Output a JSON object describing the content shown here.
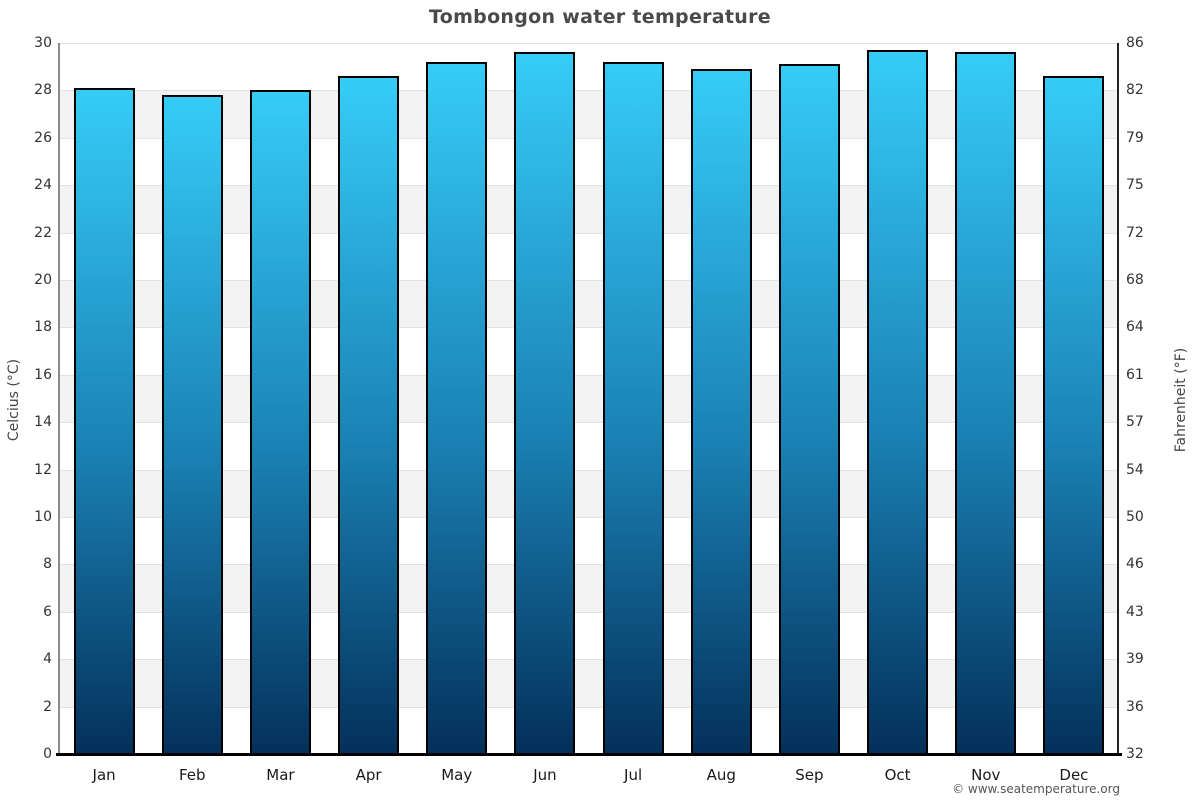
{
  "title": "Tombongon water temperature",
  "footer": {
    "credit": "© www.seatemperature.org"
  },
  "chart_data": {
    "type": "bar",
    "title": "Tombongon water temperature",
    "categories": [
      "Jan",
      "Feb",
      "Mar",
      "Apr",
      "May",
      "Jun",
      "Jul",
      "Aug",
      "Sep",
      "Oct",
      "Nov",
      "Dec"
    ],
    "values": [
      28.1,
      27.8,
      28.0,
      28.6,
      29.2,
      29.6,
      29.2,
      28.9,
      29.1,
      29.7,
      29.6,
      28.6
    ],
    "series_name": "Water temperature",
    "unit": "°C",
    "ylabel_left": "Celcius (°C)",
    "ylabel_right": "Fahrenheit (°F)",
    "ylim_celsius": [
      0,
      30
    ],
    "celsius_ticks": [
      30,
      28,
      26,
      24,
      22,
      20,
      18,
      16,
      14,
      12,
      10,
      8,
      6,
      4,
      2,
      0
    ],
    "fahrenheit_tick_labels": [
      "86",
      "82",
      "79",
      "75",
      "72",
      "68",
      "64",
      "61",
      "57",
      "54",
      "50",
      "46",
      "43",
      "39",
      "36",
      "32"
    ],
    "grid": "banded-horizontal",
    "legend_position": "none",
    "colors": {
      "bar_gradient_top": "#36ccf8",
      "bar_gradient_mid": "#1a80b3",
      "bar_gradient_bottom": "#04305a",
      "bar_border": "#000000",
      "band_gray": "#f3f3f3",
      "band_white": "#ffffff",
      "gridline": "#e2e2e2",
      "title_text": "#4a4a4a",
      "tick_text": "#333333",
      "baseline": "#000000"
    }
  }
}
